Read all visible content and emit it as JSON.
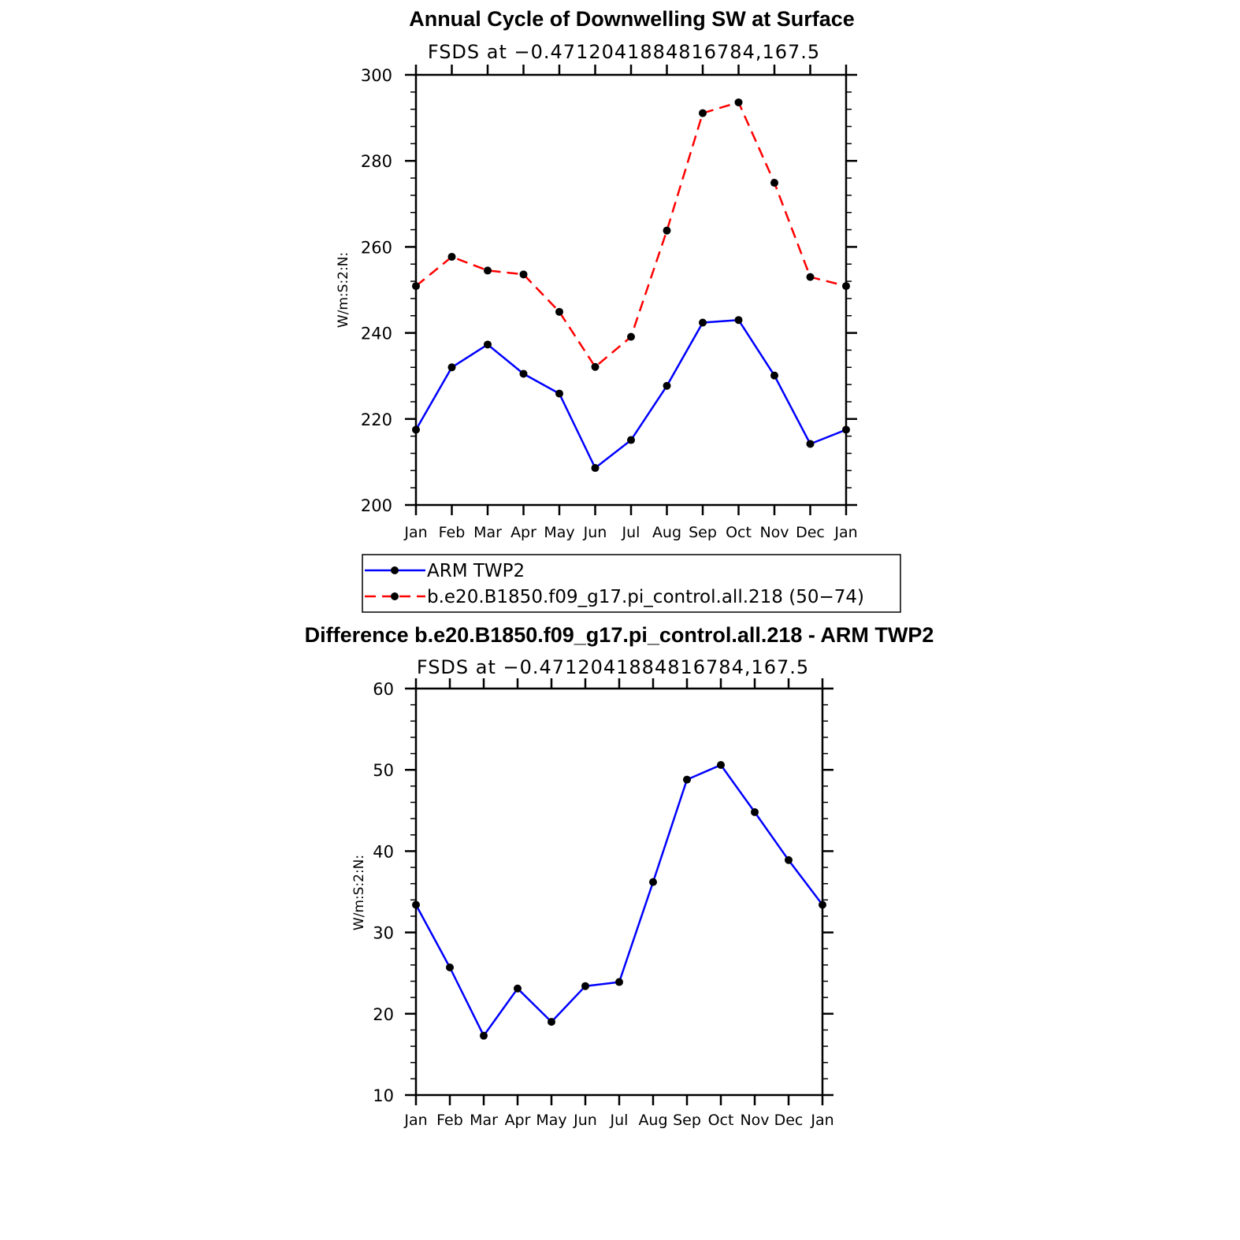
{
  "chart_data": [
    {
      "type": "line",
      "title": "Annual Cycle of Downwelling SW at Surface",
      "subtitle": "FSDS at −0.4712041884816784,167.5",
      "xlabel": "",
      "ylabel": "W/m:S:2:N:",
      "categories": [
        "Jan",
        "Feb",
        "Mar",
        "Apr",
        "May",
        "Jun",
        "Jul",
        "Aug",
        "Sep",
        "Oct",
        "Nov",
        "Dec",
        "Jan"
      ],
      "ylim": [
        200,
        300
      ],
      "yticks": [
        "200",
        "220",
        "240",
        "260",
        "280",
        "300"
      ],
      "grid": false,
      "legend_position": "bottom",
      "series": [
        {
          "name": "ARM TWP2",
          "color": "#0000ff",
          "dash": "solid",
          "values": [
            217.5,
            232.0,
            237.3,
            230.5,
            225.9,
            208.6,
            215.1,
            227.7,
            242.4,
            243.0,
            230.1,
            214.2,
            217.5
          ]
        },
        {
          "name": "b.e20.B1850.f09_g17.pi_control.all.218 (50−74)",
          "color": "#ff0000",
          "dash": "dashed",
          "values": [
            250.9,
            257.7,
            254.5,
            253.6,
            244.9,
            232.1,
            239.1,
            263.8,
            291.1,
            293.6,
            274.9,
            253.0,
            250.9
          ]
        }
      ]
    },
    {
      "type": "line",
      "title": "Difference b.e20.B1850.f09_g17.pi_control.all.218 - ARM TWP2",
      "subtitle": "FSDS at −0.4712041884816784,167.5",
      "xlabel": "",
      "ylabel": "W/m:S:2:N:",
      "categories": [
        "Jan",
        "Feb",
        "Mar",
        "Apr",
        "May",
        "Jun",
        "Jul",
        "Aug",
        "Sep",
        "Oct",
        "Nov",
        "Dec",
        "Jan"
      ],
      "ylim": [
        10,
        60
      ],
      "yticks": [
        "10",
        "20",
        "30",
        "40",
        "50",
        "60"
      ],
      "grid": false,
      "series": [
        {
          "color": "#0000ff",
          "dash": "solid",
          "values": [
            33.4,
            25.7,
            17.3,
            23.1,
            19.0,
            23.4,
            23.9,
            36.2,
            48.8,
            50.6,
            44.8,
            38.9,
            33.4
          ]
        }
      ]
    }
  ]
}
